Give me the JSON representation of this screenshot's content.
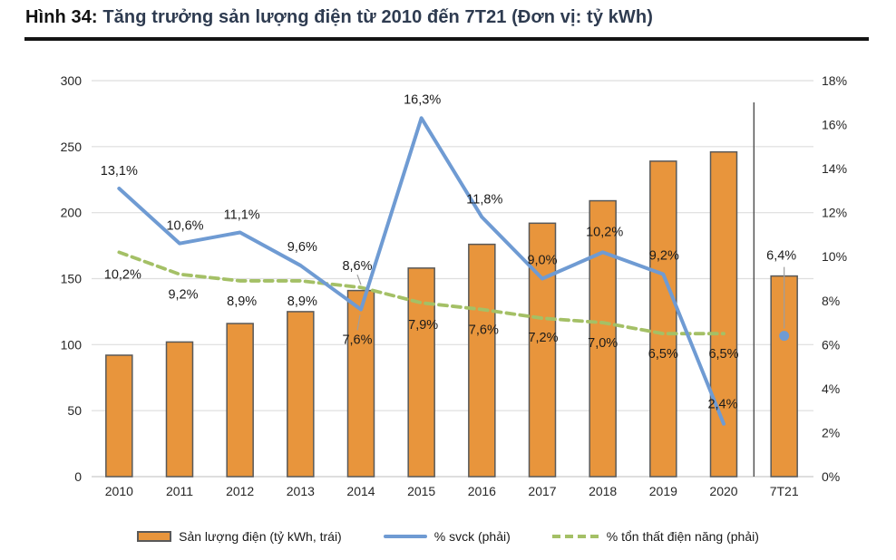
{
  "title": {
    "prefix": "Hình 34:",
    "main": " Tăng trưởng sản lượng điện từ 2010 đến 7T21 (Đơn vị: tỷ kWh)"
  },
  "colors": {
    "bar_fill": "#E8953C",
    "bar_border": "#595959",
    "line_blue": "#6F9BD3",
    "line_green": "#A4C066",
    "gridline": "#DEDEDE",
    "axis_line": "#C9C9C9",
    "separator": "#4D4D4D",
    "leader": "#9E9E9E",
    "label_text": "#1a1a1a",
    "tick_text": "#262626"
  },
  "legend": {
    "items": [
      {
        "label": "Sản lượng điện (tỷ kWh, trái)",
        "swatch": "bar"
      },
      {
        "label": "% svck (phải)",
        "swatch": "solid-line"
      },
      {
        "label": "% tổn thất điện năng (phải)",
        "swatch": "dashed-line"
      }
    ]
  },
  "chart_data": {
    "type": "combo",
    "categories": [
      "2010",
      "2011",
      "2012",
      "2013",
      "2014",
      "2015",
      "2016",
      "2017",
      "2018",
      "2019",
      "2020",
      "7T21"
    ],
    "left_axis": {
      "min": 0,
      "max": 300,
      "step": 50,
      "ticks": [
        "300",
        "250",
        "200",
        "150",
        "100",
        "50",
        "0"
      ]
    },
    "right_axis": {
      "min": 0,
      "max": 18,
      "step": 2,
      "ticks": [
        "18%",
        "16%",
        "14%",
        "12%",
        "10%",
        "8%",
        "6%",
        "4%",
        "2%",
        "0%"
      ]
    },
    "separator_before_category": "7T21",
    "gridlines": "horizontal-left-axis",
    "legend_position": "bottom",
    "series": [
      {
        "name": "Sản lượng điện (tỷ kWh, trái)",
        "type": "bar",
        "axis": "left",
        "values": [
          92,
          102,
          116,
          125,
          141,
          158,
          176,
          192,
          209,
          239,
          246,
          152
        ]
      },
      {
        "name": "% svck (phải)",
        "type": "line",
        "axis": "right",
        "values": [
          13.1,
          10.6,
          11.1,
          9.6,
          7.6,
          16.3,
          11.8,
          9.0,
          10.2,
          9.2,
          2.4,
          6.4
        ],
        "labels": [
          "13,1%",
          "10,6%",
          "11,1%",
          "9,6%",
          "7,6%",
          "16,3%",
          "11,8%",
          "9,0%",
          "10,2%",
          "9,2%",
          "2,4%",
          "6,4%"
        ],
        "last_point_marker_only": true
      },
      {
        "name": "% tổn thất điện năng (phải)",
        "type": "line-dashed",
        "axis": "right",
        "values": [
          10.2,
          9.2,
          8.9,
          8.9,
          8.6,
          7.9,
          7.6,
          7.2,
          7.0,
          6.5,
          6.5,
          null
        ],
        "labels": [
          "10,2%",
          "9,2%",
          "8,9%",
          "8,9%",
          "8,6%",
          "7,9%",
          "7,6%",
          "7,2%",
          "7,0%",
          "6,5%",
          "6,5%",
          ""
        ]
      }
    ]
  }
}
